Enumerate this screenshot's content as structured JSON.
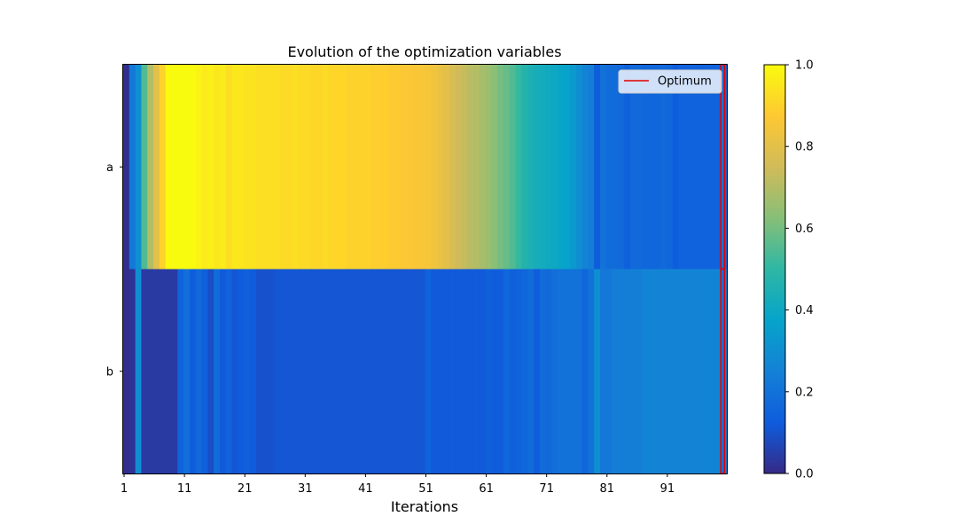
{
  "chart_data": {
    "type": "heatmap",
    "title": "Evolution of the optimization variables",
    "xlabel": "Iterations",
    "ylabel": "",
    "rows": [
      "a",
      "b"
    ],
    "x_tick_labels": [
      "1",
      "11",
      "21",
      "31",
      "41",
      "51",
      "61",
      "71",
      "81",
      "91"
    ],
    "x_range": [
      1,
      100
    ],
    "colorbar": {
      "range": [
        0,
        1
      ],
      "tick_labels": [
        "0.0",
        "0.2",
        "0.4",
        "0.6",
        "0.8",
        "1.0"
      ],
      "colormap": [
        "#352a87",
        "#0f5cdd",
        "#1481d6",
        "#06a4ca",
        "#2eb7a4",
        "#87bf77",
        "#d1bb59",
        "#fec832",
        "#f9fb0e"
      ]
    },
    "legend": {
      "entries": [
        {
          "label": "Optimum",
          "color": "#e00000"
        }
      ],
      "placement": "top-right"
    },
    "series": [
      {
        "name": "a",
        "values": [
          0.01,
          0.22,
          0.3,
          0.55,
          0.7,
          0.8,
          0.9,
          1.0,
          1.0,
          1.0,
          1.0,
          1.0,
          0.98,
          0.96,
          0.97,
          0.95,
          0.96,
          0.93,
          0.95,
          0.95,
          0.94,
          0.94,
          0.93,
          0.93,
          0.93,
          0.93,
          0.92,
          0.92,
          0.93,
          0.92,
          0.92,
          0.91,
          0.91,
          0.92,
          0.91,
          0.91,
          0.91,
          0.9,
          0.9,
          0.9,
          0.9,
          0.89,
          0.89,
          0.89,
          0.88,
          0.88,
          0.87,
          0.87,
          0.86,
          0.86,
          0.85,
          0.84,
          0.82,
          0.8,
          0.77,
          0.75,
          0.73,
          0.71,
          0.7,
          0.68,
          0.66,
          0.63,
          0.6,
          0.58,
          0.55,
          0.51,
          0.47,
          0.45,
          0.43,
          0.42,
          0.41,
          0.4,
          0.38,
          0.37,
          0.34,
          0.3,
          0.26,
          0.24,
          0.13,
          0.2,
          0.18,
          0.18,
          0.17,
          0.14,
          0.17,
          0.17,
          0.16,
          0.16,
          0.16,
          0.17,
          0.16,
          0.13,
          0.15,
          0.15,
          0.15,
          0.15,
          0.15,
          0.15,
          0.15,
          0.16
        ],
        "optimum": 0.2
      },
      {
        "name": "b",
        "values": [
          0.01,
          0.02,
          0.3,
          0.04,
          0.04,
          0.04,
          0.04,
          0.04,
          0.04,
          0.15,
          0.19,
          0.13,
          0.17,
          0.14,
          0.09,
          0.18,
          0.12,
          0.15,
          0.11,
          0.13,
          0.14,
          0.13,
          0.1,
          0.1,
          0.1,
          0.11,
          0.11,
          0.11,
          0.11,
          0.11,
          0.11,
          0.11,
          0.11,
          0.11,
          0.11,
          0.11,
          0.11,
          0.11,
          0.11,
          0.11,
          0.11,
          0.11,
          0.11,
          0.11,
          0.11,
          0.11,
          0.11,
          0.11,
          0.11,
          0.11,
          0.15,
          0.12,
          0.12,
          0.12,
          0.12,
          0.12,
          0.12,
          0.12,
          0.12,
          0.12,
          0.14,
          0.13,
          0.13,
          0.16,
          0.14,
          0.15,
          0.16,
          0.18,
          0.13,
          0.18,
          0.17,
          0.19,
          0.2,
          0.2,
          0.2,
          0.2,
          0.16,
          0.2,
          0.3,
          0.22,
          0.22,
          0.24,
          0.24,
          0.24,
          0.24,
          0.24,
          0.26,
          0.26,
          0.26,
          0.26,
          0.26,
          0.26,
          0.26,
          0.26,
          0.26,
          0.26,
          0.26,
          0.26,
          0.26,
          0.22
        ],
        "optimum": 0.2
      }
    ]
  }
}
